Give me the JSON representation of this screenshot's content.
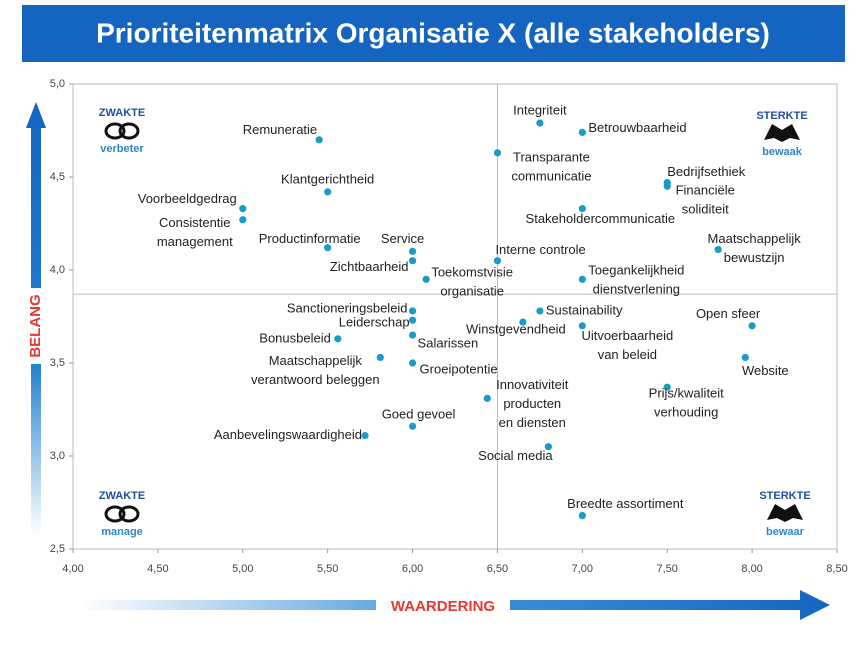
{
  "chart_data": {
    "type": "scatter",
    "title": "Prioriteitenmatrix Organisatie X (alle stakeholders)",
    "xlabel": "WAARDERING",
    "ylabel": "BELANG",
    "color": "#1b9bc8",
    "xlim": [
      4,
      8.5
    ],
    "ylim": [
      2.5,
      5
    ],
    "xticks": [
      {
        "value": 4,
        "label": "4,00"
      },
      {
        "value": 4.5,
        "label": "4,50"
      },
      {
        "value": 5,
        "label": "5,00"
      },
      {
        "value": 5.5,
        "label": "5,50"
      },
      {
        "value": 6,
        "label": "6,00"
      },
      {
        "value": 6.5,
        "label": "6,50"
      },
      {
        "value": 7,
        "label": "7,00"
      },
      {
        "value": 7.5,
        "label": "7,50"
      },
      {
        "value": 8,
        "label": "8,00"
      },
      {
        "value": 8.5,
        "label": "8,50"
      }
    ],
    "yticks": [
      {
        "value": 2.5,
        "label": "2,5"
      },
      {
        "value": 3,
        "label": "3,0"
      },
      {
        "value": 3.5,
        "label": "3,5"
      },
      {
        "value": 4,
        "label": "4,0"
      },
      {
        "value": 4.5,
        "label": "4,5"
      },
      {
        "value": 5,
        "label": "5,0"
      }
    ],
    "xref": 6.5,
    "yref": 3.87,
    "quadrants": [
      {
        "title": "ZWAKTE",
        "subtitle": "verbeter"
      },
      {
        "title": "STERKTE",
        "subtitle": "bewaak"
      },
      {
        "title": "ZWAKTE",
        "subtitle": "manage"
      },
      {
        "title": "STERKTE",
        "subtitle": "bewaar"
      }
    ],
    "labels": [
      [
        "Integriteit"
      ],
      [
        "Betrouwbaarheid"
      ],
      [
        "Remuneratie"
      ],
      [
        "Transparante",
        "communicatie"
      ],
      [
        "Klantgerichtheid"
      ],
      [
        "Bedrijfsethiek"
      ],
      [
        "Financiële",
        "soliditeit"
      ],
      [
        "Voorbeeldgedrag"
      ],
      [
        "Consistentie",
        "management"
      ],
      [
        "Stakeholdercommunicatie"
      ],
      [
        "Productinformatie"
      ],
      [
        "Service"
      ],
      [
        "Zichtbaarheid"
      ],
      [
        "Interne controle"
      ],
      [
        "Maatschappelijk",
        "bewustzijn"
      ],
      [
        "Toekomstvisie",
        "organisatie"
      ],
      [
        "Toegankelijkheid",
        "dienstverlening"
      ],
      [
        "Sanctioneringsbeleid"
      ],
      [
        "Leiderschap"
      ],
      [
        "Sustainability"
      ],
      [
        "Winstgevendheid"
      ],
      [
        "Uitvoerbaarheid",
        "van beleid"
      ],
      [
        "Open sfeer"
      ],
      [
        "Bonusbeleid"
      ],
      [
        "Salarissen"
      ],
      [
        "Maatschappelijk",
        "verantwoord beleggen"
      ],
      [
        "Groeipotentie"
      ],
      [
        "Website"
      ],
      [
        "Prijs/kwaliteit",
        "verhouding"
      ],
      [
        "Innovativiteit",
        "producten",
        "en diensten"
      ],
      [
        "Goed gevoel"
      ],
      [
        "Aanbevelingswaardigheid"
      ],
      [
        "Social media"
      ],
      [
        "Breedte assortiment"
      ]
    ],
    "x": [
      6.75,
      7.0,
      5.45,
      6.5,
      5.5,
      7.5,
      7.5,
      5.0,
      5.0,
      7.0,
      5.5,
      6.0,
      6.0,
      6.5,
      7.8,
      6.08,
      7.0,
      6.0,
      6.0,
      6.75,
      6.65,
      7.0,
      8.0,
      5.56,
      6.0,
      5.81,
      6.0,
      7.96,
      7.5,
      6.44,
      6.0,
      5.72,
      6.8,
      7.0
    ],
    "y": [
      4.79,
      4.74,
      4.7,
      4.63,
      4.42,
      4.47,
      4.45,
      4.33,
      4.27,
      4.33,
      4.12,
      4.1,
      4.05,
      4.05,
      4.11,
      3.95,
      3.95,
      3.78,
      3.73,
      3.78,
      3.72,
      3.7,
      3.7,
      3.63,
      3.65,
      3.53,
      3.5,
      3.53,
      3.37,
      3.31,
      3.16,
      3.11,
      3.05,
      2.68
    ]
  }
}
